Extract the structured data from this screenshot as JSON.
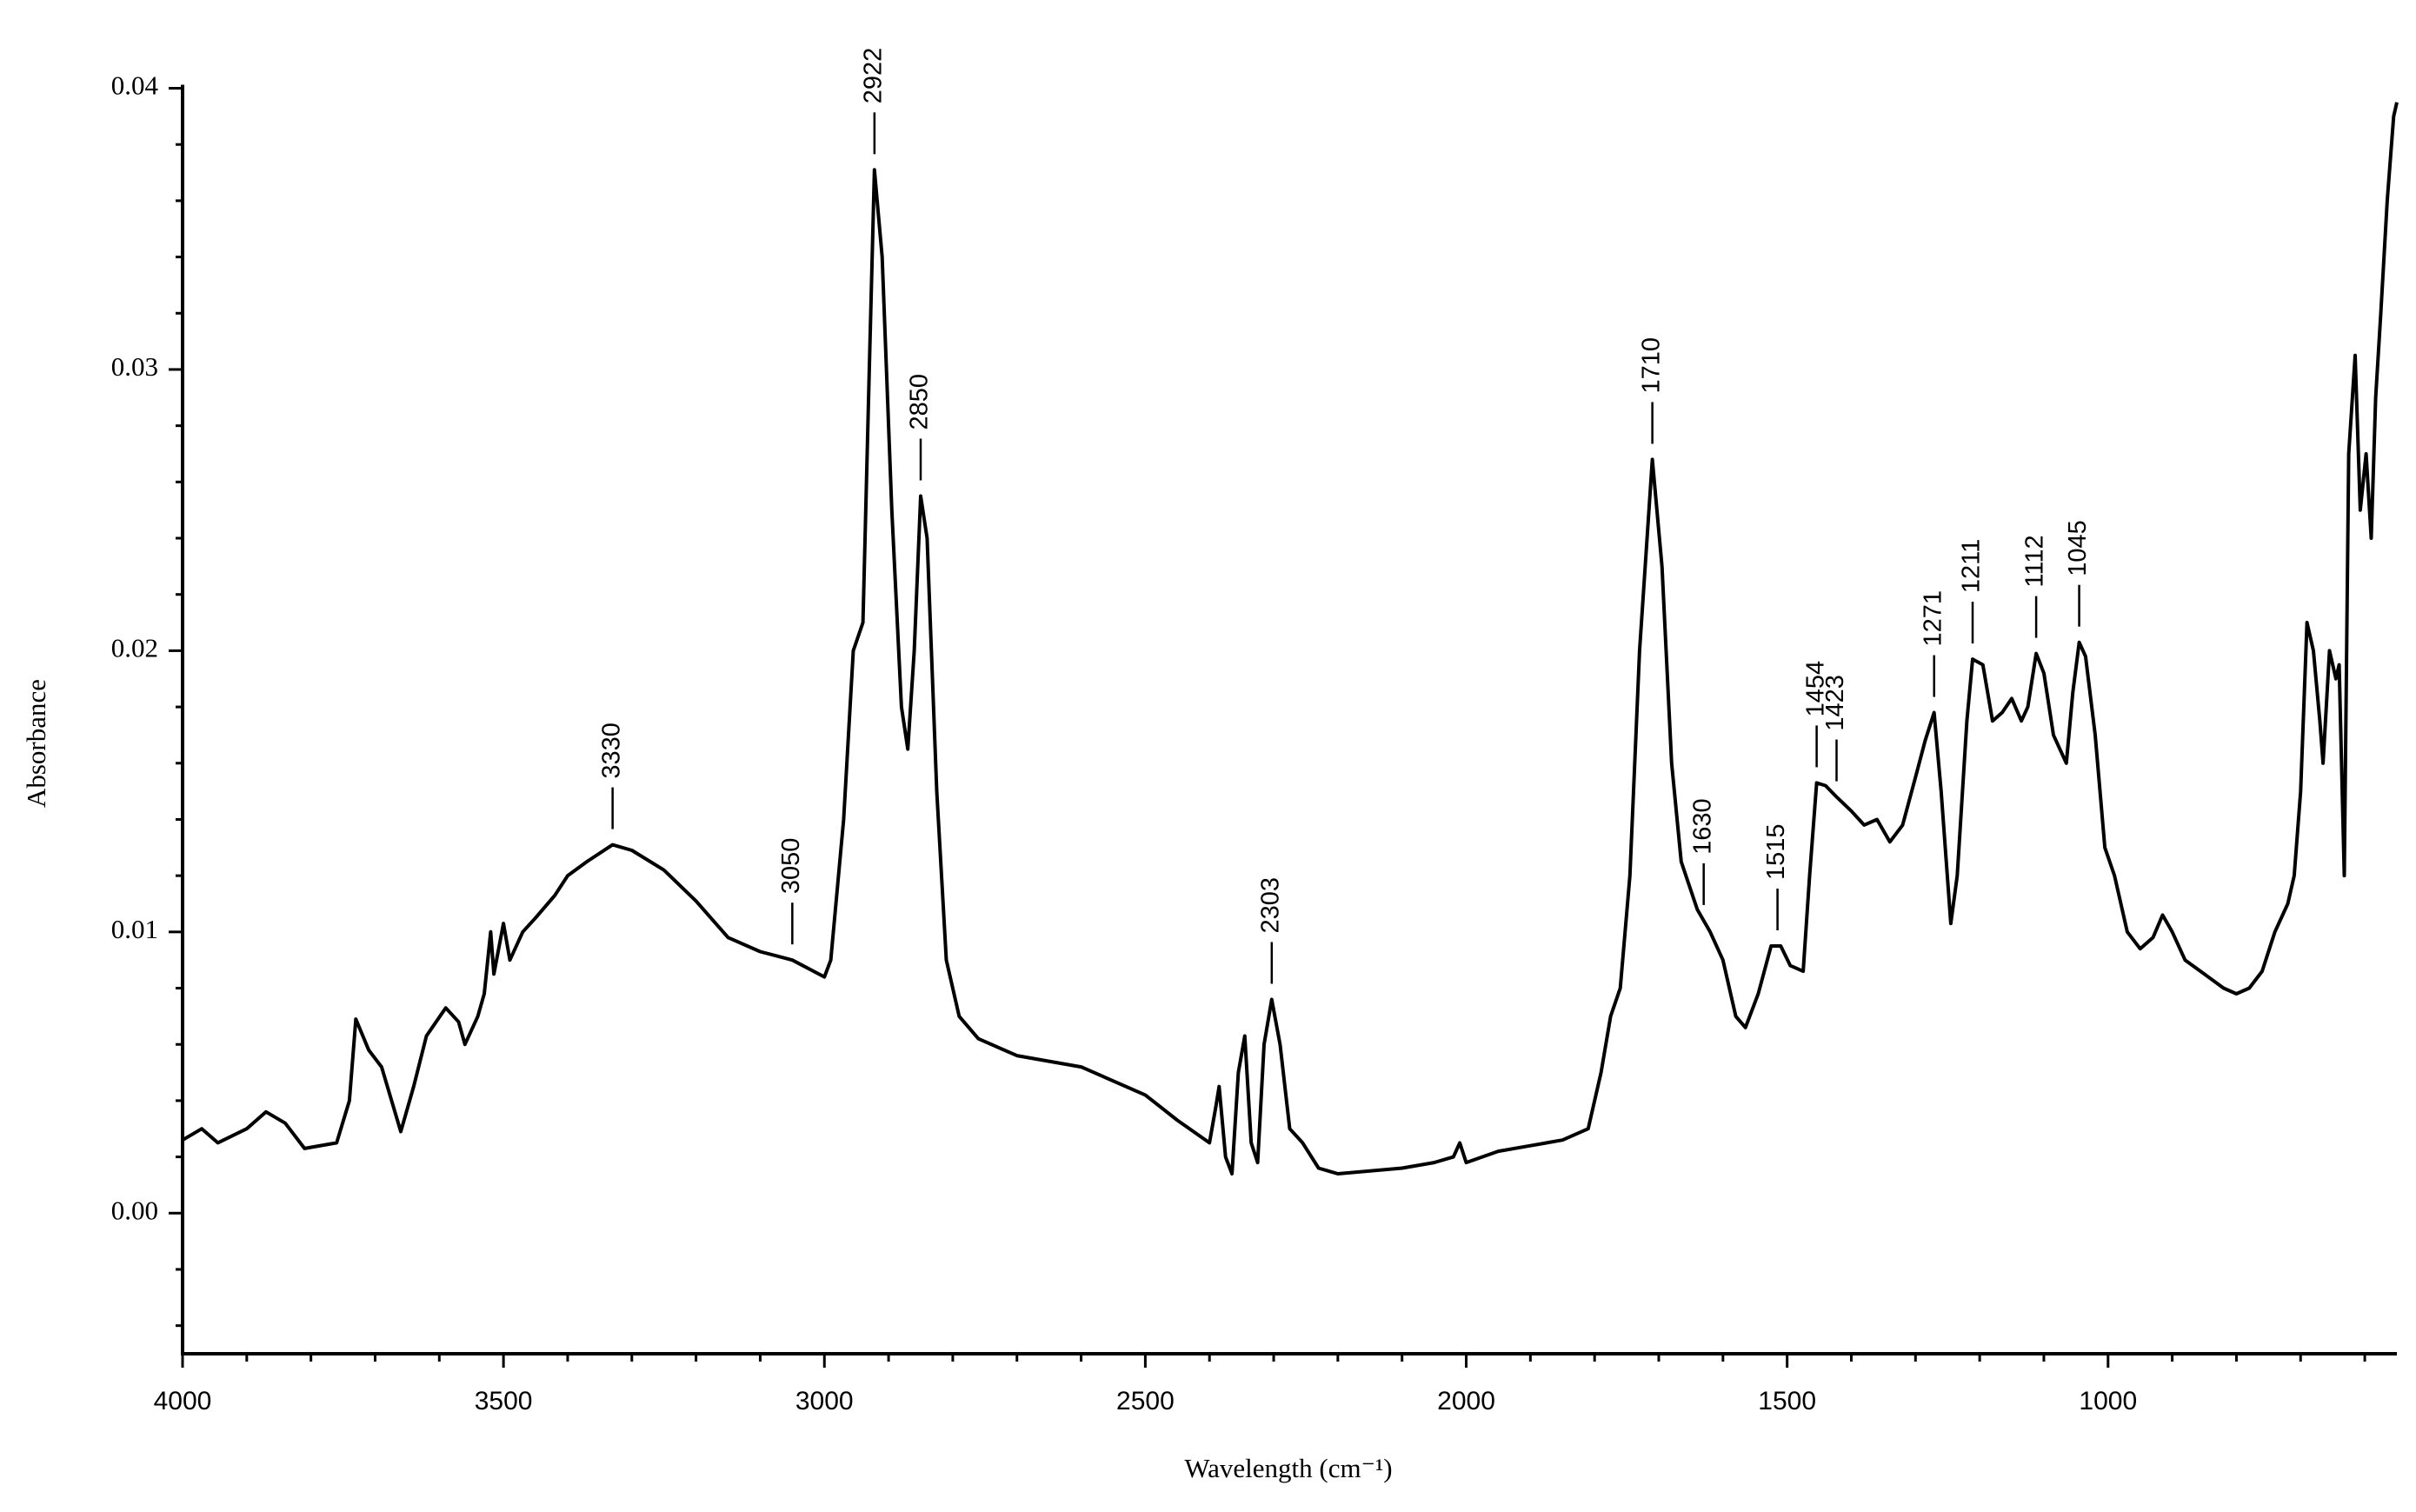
{
  "chart_data": {
    "type": "line",
    "x_label": "Wavelength (cm⁻¹)",
    "y_label": "Absorbance",
    "color": "#000000",
    "xlim": [
      4000,
      550
    ],
    "ylim": [
      -0.005,
      0.04
    ],
    "xticks": [
      4000,
      3500,
      3000,
      2500,
      2000,
      1500,
      1000
    ],
    "xminorticks": [
      3900,
      3800,
      3700,
      3600,
      3400,
      3300,
      3200,
      3100,
      2900,
      2800,
      2700,
      2600,
      2400,
      2300,
      2200,
      2100,
      1900,
      1800,
      1700,
      1600,
      1400,
      1300,
      1200,
      1100,
      900,
      800,
      700,
      600
    ],
    "yticks": [
      {
        "value": 0,
        "label": "0.00"
      },
      0.01,
      0.02,
      0.03,
      0.04
    ],
    "yminorticks": [
      -0.004,
      -0.002,
      0.002,
      0.004,
      0.006,
      0.008,
      0.012,
      0.014,
      0.016,
      0.018,
      0.022,
      0.024,
      0.026,
      0.028,
      0.032,
      0.034,
      0.036,
      0.038
    ],
    "x": [
      4000,
      3970,
      3945,
      3900,
      3870,
      3840,
      3810,
      3760,
      3740,
      3730,
      3710,
      3690,
      3660,
      3640,
      3620,
      3590,
      3570,
      3560,
      3540,
      3530,
      3520,
      3515,
      3500,
      3490,
      3470,
      3450,
      3420,
      3400,
      3370,
      3330,
      3300,
      3250,
      3200,
      3150,
      3100,
      3050,
      3000,
      2990,
      2970,
      2955,
      2940,
      2930,
      2922,
      2910,
      2895,
      2880,
      2870,
      2860,
      2850,
      2840,
      2825,
      2810,
      2790,
      2760,
      2700,
      2600,
      2500,
      2450,
      2400,
      2390,
      2385,
      2375,
      2365,
      2355,
      2345,
      2335,
      2325,
      2315,
      2303,
      2290,
      2275,
      2255,
      2230,
      2200,
      2100,
      2050,
      2020,
      2010,
      2000,
      1950,
      1900,
      1850,
      1810,
      1790,
      1775,
      1760,
      1745,
      1730,
      1710,
      1695,
      1680,
      1665,
      1640,
      1620,
      1600,
      1580,
      1565,
      1545,
      1525,
      1510,
      1495,
      1475,
      1465,
      1454,
      1440,
      1423,
      1400,
      1380,
      1360,
      1340,
      1320,
      1300,
      1285,
      1271,
      1260,
      1245,
      1235,
      1220,
      1211,
      1195,
      1180,
      1165,
      1150,
      1135,
      1125,
      1112,
      1100,
      1085,
      1065,
      1055,
      1045,
      1035,
      1020,
      1005,
      990,
      970,
      950,
      930,
      915,
      900,
      880,
      850,
      820,
      800,
      780,
      760,
      740,
      720,
      710,
      700,
      690,
      680,
      670,
      665,
      655,
      645,
      640,
      632,
      625,
      615,
      607,
      598,
      590,
      583,
      575,
      565,
      555,
      550
    ],
    "values": [
      0.0026,
      0.003,
      0.0025,
      0.003,
      0.0036,
      0.0032,
      0.0023,
      0.0025,
      0.004,
      0.0069,
      0.0058,
      0.0052,
      0.0029,
      0.0045,
      0.0063,
      0.0073,
      0.0068,
      0.006,
      0.007,
      0.0078,
      0.01,
      0.0085,
      0.0103,
      0.009,
      0.01,
      0.0105,
      0.0113,
      0.012,
      0.0125,
      0.0131,
      0.0129,
      0.0122,
      0.0111,
      0.0098,
      0.0093,
      0.009,
      0.0084,
      0.009,
      0.014,
      0.02,
      0.021,
      0.03,
      0.0371,
      0.034,
      0.025,
      0.018,
      0.0165,
      0.02,
      0.0255,
      0.024,
      0.015,
      0.009,
      0.007,
      0.0062,
      0.0056,
      0.0052,
      0.0042,
      0.0033,
      0.0025,
      0.0038,
      0.0045,
      0.002,
      0.0014,
      0.005,
      0.0063,
      0.0025,
      0.0018,
      0.006,
      0.0076,
      0.006,
      0.003,
      0.0025,
      0.0016,
      0.0014,
      0.0016,
      0.0018,
      0.002,
      0.0025,
      0.0018,
      0.0022,
      0.0024,
      0.0026,
      0.003,
      0.005,
      0.007,
      0.008,
      0.012,
      0.02,
      0.0268,
      0.023,
      0.016,
      0.0125,
      0.0108,
      0.01,
      0.009,
      0.007,
      0.0066,
      0.0078,
      0.0095,
      0.0095,
      0.0088,
      0.0086,
      0.012,
      0.0153,
      0.0152,
      0.0148,
      0.0143,
      0.0138,
      0.014,
      0.0132,
      0.0138,
      0.0155,
      0.0168,
      0.0178,
      0.015,
      0.0103,
      0.012,
      0.0175,
      0.0197,
      0.0195,
      0.0175,
      0.0178,
      0.0183,
      0.0175,
      0.018,
      0.0199,
      0.0192,
      0.017,
      0.016,
      0.0185,
      0.0203,
      0.0198,
      0.017,
      0.013,
      0.012,
      0.01,
      0.0094,
      0.0098,
      0.0106,
      0.01,
      0.009,
      0.0085,
      0.008,
      0.0078,
      0.008,
      0.0086,
      0.01,
      0.011,
      0.012,
      0.015,
      0.021,
      0.02,
      0.0175,
      0.016,
      0.02,
      0.019,
      0.0195,
      0.012,
      0.027,
      0.0305,
      0.025,
      0.027,
      0.024,
      0.029,
      0.032,
      0.036,
      0.039,
      0.0395
    ],
    "annotations": [
      {
        "value": 3330,
        "label": "3330"
      },
      {
        "value": 3050,
        "label": "3050"
      },
      {
        "value": 2922,
        "label": "2922"
      },
      {
        "value": 2850,
        "label": "2850"
      },
      {
        "value": 2303,
        "label": "2303"
      },
      {
        "value": 1710,
        "label": "1710"
      },
      {
        "value": 1630,
        "label": "1630"
      },
      {
        "value": 1515,
        "label": "1515"
      },
      {
        "value": 1454,
        "label": "1454"
      },
      {
        "value": 1423,
        "label": "1423"
      },
      {
        "value": 1271,
        "label": "1271"
      },
      {
        "value": 1211,
        "label": "1211"
      },
      {
        "value": 1112,
        "label": "1112"
      },
      {
        "value": 1045,
        "label": "1045"
      }
    ]
  }
}
